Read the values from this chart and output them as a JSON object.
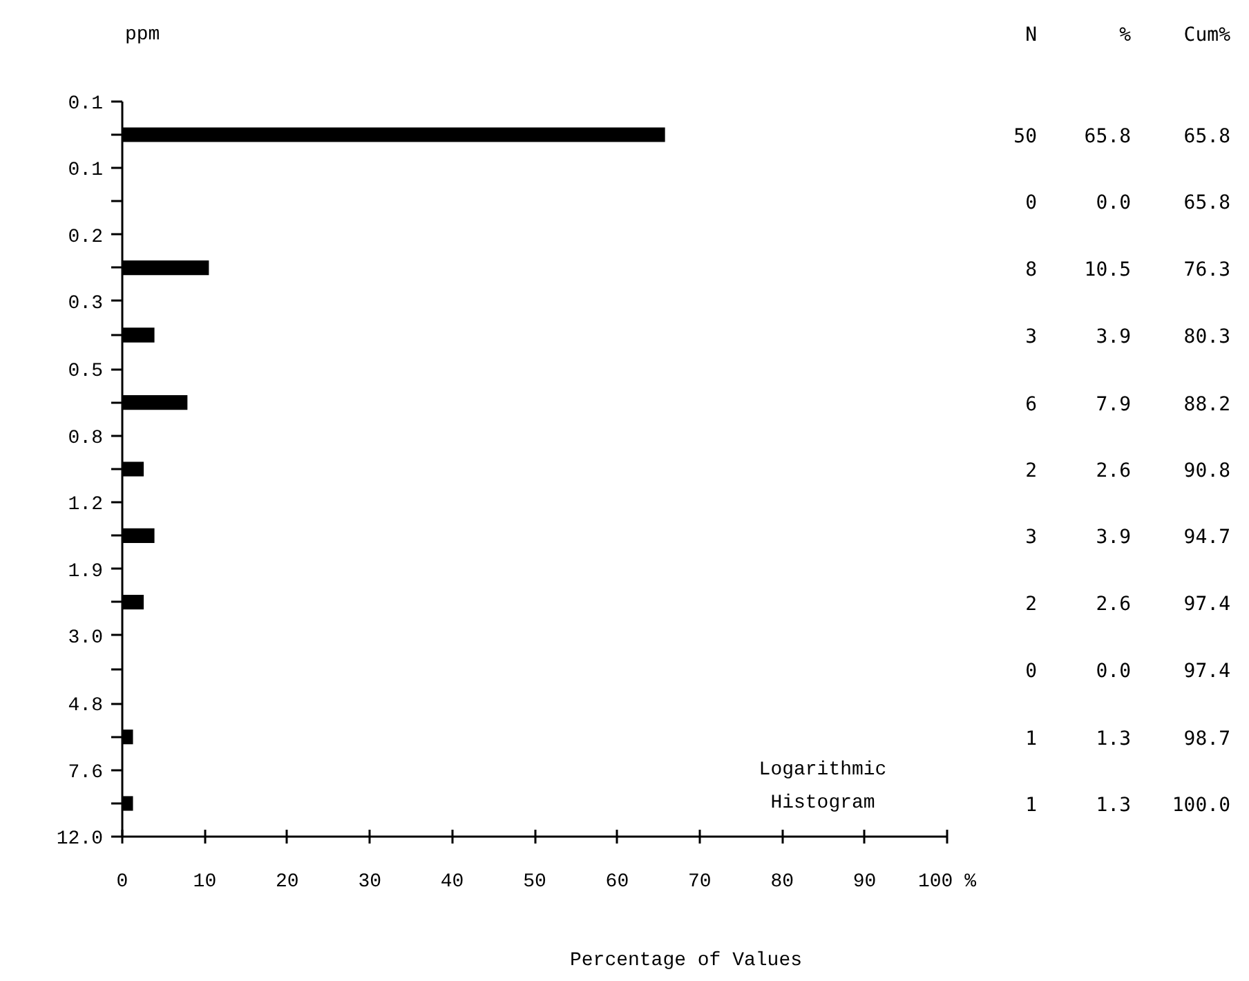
{
  "chart_data": {
    "type": "histogram",
    "orientation": "horizontal",
    "log": "y",
    "bins": [
      0.076,
      0.12,
      0.19,
      0.3,
      0.48,
      0.76,
      1.2,
      1.9,
      3.0,
      4.8,
      7.6,
      12.0
    ],
    "values": [
      65.8,
      0.0,
      10.5,
      3.9,
      7.9,
      2.6,
      3.9,
      2.6,
      0.0,
      1.3,
      1.3
    ],
    "color": "#000000",
    "xlabel": "Percentage of Values",
    "ylabel": "ppm",
    "xlim": [
      0,
      100
    ],
    "xticks": [
      0,
      10,
      20,
      30,
      40,
      50,
      60,
      70,
      80,
      90,
      {
        "value": 100,
        "label": "100 %"
      }
    ],
    "ylim": [
      12.0,
      0.076
    ],
    "yticks": [
      {
        "value": 0.076,
        "label": "0.1"
      },
      {
        "value": 0.12,
        "label": "0.1"
      },
      {
        "value": 0.19,
        "label": "0.2"
      },
      {
        "value": 0.3,
        "label": "0.3"
      },
      {
        "value": 0.48,
        "label": "0.5"
      },
      {
        "value": 0.76,
        "label": "0.8"
      },
      1.2,
      1.9,
      {
        "value": 3.0,
        "label": "3.0"
      },
      4.8,
      7.6,
      {
        "value": 12.0,
        "label": "12.0"
      }
    ],
    "grid": false,
    "annotations": [
      "Logarithmic",
      "Histogram",
      "N",
      "%",
      "Cum%",
      "50",
      "0",
      "8",
      "3",
      "6",
      "2",
      "3",
      "2",
      "0",
      "1",
      "1",
      "65.8",
      "0.0",
      "10.5",
      "3.9",
      "7.9",
      "2.6",
      "3.9",
      "2.6",
      "0.0",
      "1.3",
      "1.3",
      "65.8",
      "65.8",
      "76.3",
      "80.3",
      "88.2",
      "90.8",
      "94.7",
      "97.4",
      "97.4",
      "98.7",
      "100.0"
    ]
  }
}
